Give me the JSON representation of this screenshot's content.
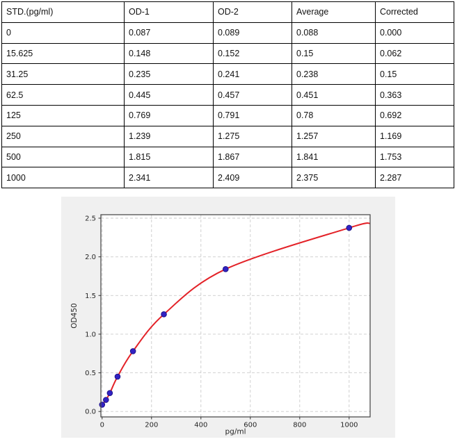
{
  "table": {
    "headers": [
      "STD.(pg/ml)",
      "OD-1",
      "OD-2",
      "Average",
      "Corrected"
    ],
    "rows": [
      [
        "0",
        "0.087",
        "0.089",
        "0.088",
        "0.000"
      ],
      [
        "15.625",
        "0.148",
        "0.152",
        "0.15",
        "0.062"
      ],
      [
        "31.25",
        "0.235",
        "0.241",
        "0.238",
        "0.15"
      ],
      [
        "62.5",
        "0.445",
        "0.457",
        "0.451",
        "0.363"
      ],
      [
        "125",
        "0.769",
        "0.791",
        "0.78",
        "0.692"
      ],
      [
        "250",
        "1.239",
        "1.275",
        "1.257",
        "1.169"
      ],
      [
        "500",
        "1.815",
        "1.867",
        "1.841",
        "1.753"
      ],
      [
        "1000",
        "2.341",
        "2.409",
        "2.375",
        "2.287"
      ]
    ]
  },
  "chart_data": {
    "type": "scatter",
    "title": "",
    "xlabel": "pg/ml",
    "ylabel": "OD450",
    "x": [
      0,
      15.625,
      31.25,
      62.5,
      125,
      250,
      500,
      1000
    ],
    "series": [
      {
        "name": "OD450 average",
        "values": [
          0.088,
          0.15,
          0.238,
          0.451,
          0.78,
          1.257,
          1.841,
          2.375
        ]
      }
    ],
    "fit_curve": {
      "ext_left": [
        -5,
        0.066
      ],
      "ext_right": [
        1085,
        2.434
      ]
    },
    "xlim": [
      -5,
      1085
    ],
    "ylim": [
      -0.07,
      2.545
    ],
    "xticks": [
      0,
      200,
      400,
      600,
      800,
      1000
    ],
    "xtick_labels": [
      "0",
      "200",
      "400",
      "600",
      "800",
      "1000"
    ],
    "yticks": [
      0.0,
      0.5,
      1.0,
      1.5,
      2.0,
      2.5
    ],
    "ytick_labels": [
      "0.0",
      "0.5",
      "1.0",
      "1.5",
      "2.0",
      "2.5"
    ],
    "grid": true,
    "legend": "none",
    "colors": {
      "figure_bg": "#f0f0f0",
      "plot_bg": "#ffffff",
      "grid": "#cbcbcb",
      "spine": "#4d4d4d",
      "tick": "#333333",
      "label": "#262626",
      "curve": "#e32228",
      "marker_fill": "#3222c4",
      "marker_edge": "#1e1489"
    }
  }
}
